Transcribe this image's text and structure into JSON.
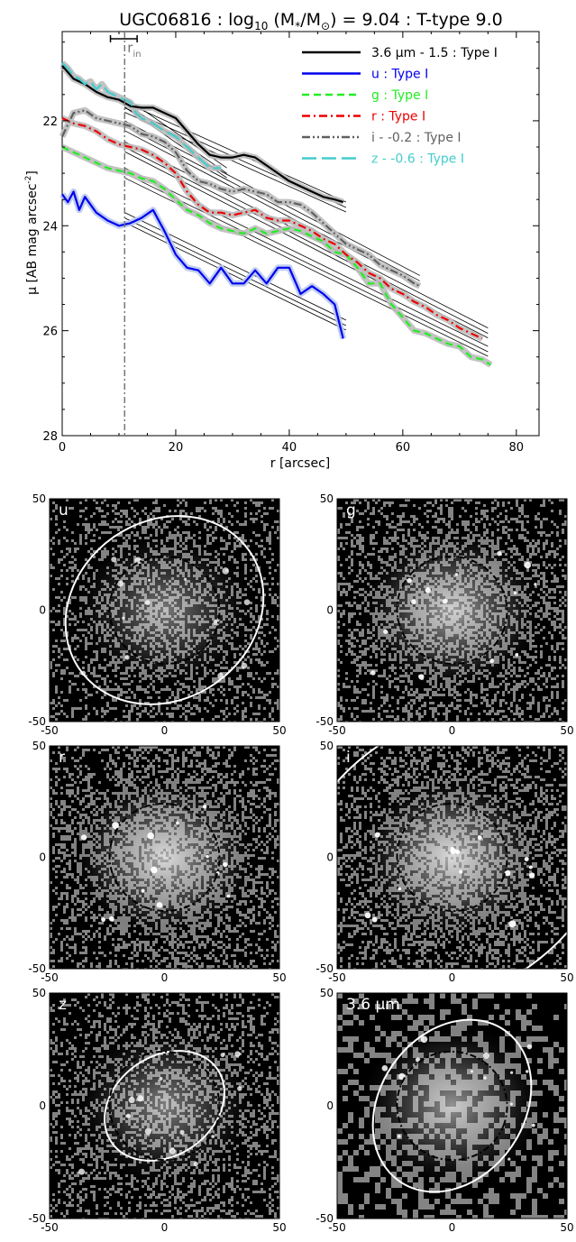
{
  "chart_data": [
    {
      "type": "line",
      "title": "UGC06816 : log",
      "title_sub": "10",
      "title_mid": " (M",
      "title_sub2": "*",
      "title_mid2": "/M",
      "title_sub3": "⊙",
      "title_end": ") = 9.04 : T-type 9.0",
      "xlabel": "r [arcsec]",
      "ylabel": "μ [AB mag arcsec",
      "ylabel_sup": "-2",
      "ylabel_end": "]",
      "xlim": [
        0,
        84
      ],
      "ylim": [
        28,
        20.3
      ],
      "y_inverted": true,
      "x_ticks": [
        "0",
        "20",
        "40",
        "60",
        "80"
      ],
      "x_tick_values": [
        0,
        20,
        40,
        60,
        80
      ],
      "y_ticks": [
        "22",
        "24",
        "26",
        "28"
      ],
      "y_tick_values": [
        22,
        24,
        26,
        28
      ],
      "r_in_label": "r",
      "r_in_sub": "in",
      "r_in": 11,
      "r_in_err": [
        8.5,
        13.2
      ],
      "grid": false,
      "legend_position": "top-right",
      "series": [
        {
          "name": "3.6 μm - 1.5 : Type I",
          "color": "#000000",
          "dash": "solid",
          "x": [
            0,
            2,
            4,
            6,
            8,
            10,
            12,
            14,
            16,
            18,
            20,
            22,
            24,
            26,
            28,
            30,
            32,
            34,
            36,
            38,
            40,
            42,
            44,
            46,
            48,
            49.5
          ],
          "y": [
            20.95,
            21.2,
            21.3,
            21.45,
            21.55,
            21.6,
            21.72,
            21.75,
            21.75,
            21.85,
            21.95,
            22.2,
            22.45,
            22.65,
            22.7,
            22.7,
            22.65,
            22.7,
            22.85,
            23.0,
            23.15,
            23.25,
            23.35,
            23.45,
            23.5,
            23.55
          ],
          "fit": {
            "x": [
              11,
              50
            ],
            "y": [
              21.7,
              23.6
            ]
          }
        },
        {
          "name": "u : Type I",
          "color": "#0000ee",
          "dash": "solid",
          "x": [
            0,
            1,
            2,
            3,
            4,
            6,
            8,
            10,
            12,
            14,
            16,
            17,
            18,
            20,
            22,
            24,
            26,
            28,
            30,
            32,
            34,
            36,
            38,
            40,
            42,
            44,
            46,
            48,
            49.5
          ],
          "y": [
            23.4,
            23.55,
            23.35,
            23.7,
            23.45,
            23.75,
            23.9,
            24.0,
            23.95,
            23.85,
            23.7,
            23.9,
            24.1,
            24.55,
            24.8,
            24.85,
            25.1,
            24.8,
            25.1,
            25.1,
            24.85,
            25.1,
            24.8,
            24.8,
            25.3,
            25.15,
            25.3,
            25.5,
            26.15
          ],
          "fit": {
            "x": [
              11,
              50
            ],
            "y": [
              23.8,
              25.85
            ]
          }
        },
        {
          "name": "g : Type I",
          "color": "#22ee22",
          "dash": "dashed",
          "x": [
            0,
            2,
            4,
            6,
            8,
            10,
            12,
            14,
            16,
            18,
            20,
            22,
            24,
            26,
            28,
            30,
            32,
            34,
            36,
            38,
            40,
            42,
            44,
            46,
            48,
            50,
            52,
            54,
            56,
            58,
            60,
            62,
            64,
            66,
            68,
            70,
            72,
            74,
            75.5
          ],
          "y": [
            22.5,
            22.6,
            22.7,
            22.8,
            22.9,
            22.95,
            23.0,
            23.1,
            23.15,
            23.3,
            23.5,
            23.7,
            23.8,
            23.95,
            24.05,
            24.1,
            24.15,
            24.05,
            24.15,
            24.1,
            24.05,
            24.1,
            24.2,
            24.3,
            24.5,
            24.55,
            24.8,
            25.1,
            25.1,
            25.5,
            25.75,
            26.0,
            26.05,
            26.15,
            26.25,
            26.3,
            26.5,
            26.55,
            26.65
          ],
          "fit": {
            "x": [
              11,
              75
            ],
            "y": [
              22.95,
              26.35
            ]
          }
        },
        {
          "name": "r : Type I",
          "color": "#ee0000",
          "dash": "dashdot",
          "x": [
            0,
            2,
            4,
            6,
            8,
            10,
            12,
            14,
            16,
            18,
            20,
            22,
            24,
            26,
            28,
            30,
            32,
            34,
            36,
            38,
            40,
            42,
            44,
            46,
            48,
            50,
            52,
            54,
            56,
            58,
            60,
            62,
            64,
            66,
            68,
            70,
            72,
            74
          ],
          "y": [
            21.95,
            22.05,
            22.1,
            22.2,
            22.35,
            22.45,
            22.5,
            22.55,
            22.65,
            22.8,
            23.0,
            23.35,
            23.6,
            23.75,
            23.75,
            23.8,
            23.75,
            23.7,
            23.85,
            23.9,
            23.9,
            24.0,
            24.1,
            24.25,
            24.35,
            24.55,
            24.7,
            24.9,
            25.0,
            25.2,
            25.3,
            25.45,
            25.55,
            25.7,
            25.8,
            25.95,
            26.05,
            26.15
          ],
          "fit": {
            "x": [
              11,
              75
            ],
            "y": [
              22.45,
              26.0
            ]
          }
        },
        {
          "name": "i - -0.2 : Type I",
          "color": "#606060",
          "dash": "dashdotdot",
          "x": [
            0,
            2,
            4,
            6,
            8,
            10,
            12,
            14,
            16,
            18,
            20,
            22,
            24,
            26,
            28,
            30,
            32,
            34,
            36,
            38,
            40,
            42,
            44,
            46,
            48,
            50,
            52,
            54,
            56,
            58,
            60,
            62,
            63
          ],
          "y": [
            22.3,
            21.85,
            21.8,
            21.95,
            22.0,
            22.05,
            22.1,
            22.25,
            22.3,
            22.4,
            22.6,
            22.95,
            23.15,
            23.2,
            23.3,
            23.35,
            23.3,
            23.35,
            23.4,
            23.55,
            23.55,
            23.6,
            23.75,
            23.95,
            24.15,
            24.35,
            24.45,
            24.55,
            24.75,
            24.85,
            24.95,
            25.1,
            25.15
          ],
          "fit": {
            "x": [
              11,
              63
            ],
            "y": [
              22.05,
              25.0
            ]
          }
        },
        {
          "name": "z - -0.6 : Type I",
          "color": "#44cccc",
          "dash": "longdash",
          "x": [
            0,
            1,
            2,
            3,
            4,
            5,
            6,
            7,
            8,
            9,
            10,
            11,
            12,
            13,
            14,
            16,
            18,
            20,
            22,
            24,
            26,
            28
          ],
          "y": [
            20.9,
            21.0,
            21.15,
            21.2,
            21.3,
            21.25,
            21.4,
            21.3,
            21.45,
            21.5,
            21.55,
            21.6,
            21.65,
            21.85,
            21.95,
            22.05,
            22.2,
            22.3,
            22.5,
            22.7,
            22.9,
            22.9
          ],
          "fit": {
            "x": [
              11,
              29
            ],
            "y": [
              21.6,
              22.95
            ]
          }
        }
      ]
    },
    {
      "type": "heatmap",
      "description_panels": true,
      "axis_ticks": [
        "-50",
        "0",
        "50"
      ],
      "axis_tick_values": [
        -50,
        0,
        50
      ],
      "xlim": [
        -50,
        50
      ],
      "ylim": [
        -50,
        50
      ],
      "panels": [
        {
          "label": "u",
          "outer_ellipse": {
            "rx": 45,
            "ry": 40,
            "angle": -35
          },
          "inner_ellipse": {
            "rx": 10,
            "ry": 8,
            "angle": 20
          },
          "brightness": 0.5
        },
        {
          "label": "g",
          "outer_ellipse": {
            "rx": 90,
            "ry": 72,
            "angle": -35
          },
          "inner_ellipse": {
            "rx": 10,
            "ry": 8,
            "angle": 20
          },
          "brightness": 0.8
        },
        {
          "label": "r",
          "outer_ellipse": {
            "rx": 90,
            "ry": 72,
            "angle": -35
          },
          "inner_ellipse": {
            "rx": 10,
            "ry": 8,
            "angle": 20
          },
          "brightness": 0.9
        },
        {
          "label": "i",
          "outer_ellipse": {
            "rx": 75,
            "ry": 60,
            "angle": -35
          },
          "inner_ellipse": {
            "rx": 10,
            "ry": 8,
            "angle": 20
          },
          "brightness": 0.9
        },
        {
          "label": "z",
          "outer_ellipse": {
            "rx": 28,
            "ry": 22,
            "angle": -35
          },
          "inner_ellipse": {
            "rx": 10,
            "ry": 8,
            "angle": 20
          },
          "brightness": 0.55
        },
        {
          "label": "3.6 μm",
          "outer_ellipse": {
            "rx": 40,
            "ry": 32,
            "angle": -55
          },
          "inner_ellipse": {
            "rx": 10,
            "ry": 8,
            "angle": 20
          },
          "brightness": 0.7
        }
      ]
    }
  ]
}
